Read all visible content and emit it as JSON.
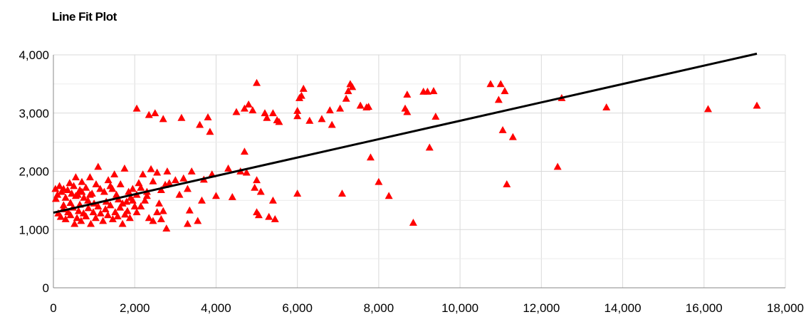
{
  "chart_data": {
    "type": "scatter",
    "title": "Line Fit Plot",
    "xlabel": "",
    "ylabel": "",
    "xlim": [
      0,
      18000
    ],
    "ylim": [
      0,
      4000
    ],
    "x_ticks": [
      0,
      2000,
      4000,
      6000,
      8000,
      10000,
      12000,
      14000,
      16000,
      18000
    ],
    "x_tick_labels": [
      "0",
      "2,000",
      "4,000",
      "6,000",
      "8,000",
      "10,000",
      "12,000",
      "14,000",
      "16,000",
      "18,000"
    ],
    "y_ticks": [
      0,
      1000,
      2000,
      3000,
      4000
    ],
    "y_tick_labels": [
      "0",
      "1,000",
      "2,000",
      "3,000",
      "4,000"
    ],
    "grid": true,
    "marker_color": "#ff0000",
    "line_color": "#000000",
    "fit_line": {
      "x": [
        0,
        17300
      ],
      "y": [
        1290,
        4020
      ]
    },
    "points": [
      [
        2050,
        3080
      ],
      [
        2350,
        2970
      ],
      [
        2500,
        3000
      ],
      [
        2700,
        2900
      ],
      [
        3150,
        2920
      ],
      [
        3600,
        2800
      ],
      [
        3800,
        2930
      ],
      [
        3850,
        2680
      ],
      [
        4500,
        3020
      ],
      [
        4700,
        3080
      ],
      [
        4800,
        3150
      ],
      [
        4900,
        3050
      ],
      [
        5000,
        3520
      ],
      [
        5200,
        3000
      ],
      [
        5250,
        2920
      ],
      [
        5400,
        3000
      ],
      [
        5500,
        2880
      ],
      [
        5550,
        2850
      ],
      [
        6000,
        2950
      ],
      [
        6000,
        3040
      ],
      [
        6100,
        3300
      ],
      [
        6150,
        3420
      ],
      [
        6050,
        3260
      ],
      [
        6300,
        2870
      ],
      [
        6600,
        2900
      ],
      [
        6800,
        3050
      ],
      [
        6850,
        2800
      ],
      [
        7050,
        3080
      ],
      [
        7200,
        3250
      ],
      [
        7300,
        3500
      ],
      [
        7250,
        3380
      ],
      [
        7350,
        3450
      ],
      [
        7550,
        3130
      ],
      [
        7700,
        3100
      ],
      [
        7750,
        3110
      ],
      [
        8650,
        3080
      ],
      [
        8700,
        3020
      ],
      [
        8700,
        3320
      ],
      [
        9100,
        3370
      ],
      [
        9200,
        3370
      ],
      [
        9350,
        3380
      ],
      [
        9400,
        2940
      ],
      [
        9250,
        2410
      ],
      [
        10750,
        3500
      ],
      [
        10950,
        3230
      ],
      [
        11000,
        3500
      ],
      [
        11100,
        3380
      ],
      [
        11050,
        2710
      ],
      [
        11300,
        2590
      ],
      [
        12500,
        3260
      ],
      [
        13600,
        3100
      ],
      [
        16100,
        3070
      ],
      [
        17300,
        3130
      ],
      [
        7800,
        2240
      ],
      [
        8000,
        1820
      ],
      [
        8250,
        1580
      ],
      [
        8850,
        1120
      ],
      [
        7100,
        1620
      ],
      [
        6000,
        1620
      ],
      [
        11150,
        1780
      ],
      [
        12400,
        2080
      ],
      [
        4700,
        2340
      ],
      [
        4600,
        2000
      ],
      [
        4750,
        1980
      ],
      [
        4400,
        1560
      ],
      [
        4300,
        2050
      ],
      [
        4000,
        1580
      ],
      [
        3900,
        1950
      ],
      [
        3700,
        1860
      ],
      [
        3650,
        1500
      ],
      [
        3400,
        2000
      ],
      [
        3300,
        1700
      ],
      [
        3200,
        1880
      ],
      [
        3100,
        1600
      ],
      [
        3000,
        1850
      ],
      [
        2850,
        1800
      ],
      [
        2800,
        2000
      ],
      [
        2750,
        1770
      ],
      [
        2650,
        1680
      ],
      [
        2550,
        1980
      ],
      [
        2450,
        1830
      ],
      [
        2400,
        2040
      ],
      [
        2300,
        1650
      ],
      [
        2200,
        1950
      ],
      [
        2150,
        1720
      ],
      [
        2100,
        1800
      ],
      [
        2050,
        1600
      ],
      [
        1950,
        1700
      ],
      [
        1850,
        1650
      ],
      [
        1750,
        2050
      ],
      [
        1650,
        1780
      ],
      [
        1550,
        1600
      ],
      [
        1500,
        1950
      ],
      [
        1450,
        1700
      ],
      [
        1350,
        1850
      ],
      [
        1250,
        1650
      ],
      [
        1100,
        2080
      ],
      [
        1050,
        1780
      ],
      [
        950,
        1620
      ],
      [
        900,
        1900
      ],
      [
        800,
        1720
      ],
      [
        750,
        1550
      ],
      [
        700,
        1820
      ],
      [
        650,
        1680
      ],
      [
        600,
        1600
      ],
      [
        550,
        1900
      ],
      [
        500,
        1750
      ],
      [
        450,
        1620
      ],
      [
        400,
        1800
      ],
      [
        350,
        1680
      ],
      [
        300,
        1550
      ],
      [
        250,
        1700
      ],
      [
        200,
        1650
      ],
      [
        150,
        1750
      ],
      [
        100,
        1600
      ],
      [
        50,
        1700
      ],
      [
        60,
        1530
      ],
      [
        120,
        1280
      ],
      [
        180,
        1220
      ],
      [
        240,
        1350
      ],
      [
        300,
        1180
      ],
      [
        360,
        1300
      ],
      [
        420,
        1250
      ],
      [
        480,
        1380
      ],
      [
        520,
        1100
      ],
      [
        580,
        1200
      ],
      [
        620,
        1320
      ],
      [
        680,
        1150
      ],
      [
        740,
        1280
      ],
      [
        800,
        1230
      ],
      [
        860,
        1370
      ],
      [
        920,
        1100
      ],
      [
        980,
        1300
      ],
      [
        1040,
        1200
      ],
      [
        1100,
        1400
      ],
      [
        1160,
        1280
      ],
      [
        1220,
        1150
      ],
      [
        1280,
        1350
      ],
      [
        1340,
        1250
      ],
      [
        1400,
        1420
      ],
      [
        1460,
        1180
      ],
      [
        1520,
        1300
      ],
      [
        1580,
        1230
      ],
      [
        1640,
        1380
      ],
      [
        1700,
        1100
      ],
      [
        1760,
        1260
      ],
      [
        1820,
        1320
      ],
      [
        1880,
        1200
      ],
      [
        1950,
        1500
      ],
      [
        2050,
        1300
      ],
      [
        2150,
        1400
      ],
      [
        2250,
        1500
      ],
      [
        2350,
        1200
      ],
      [
        2450,
        1150
      ],
      [
        2550,
        1300
      ],
      [
        2650,
        1180
      ],
      [
        2780,
        1020
      ],
      [
        3350,
        1330
      ],
      [
        3550,
        1150
      ],
      [
        3300,
        1100
      ],
      [
        5000,
        1300
      ],
      [
        5050,
        1250
      ],
      [
        5300,
        1220
      ],
      [
        5450,
        1180
      ],
      [
        5100,
        1650
      ],
      [
        5400,
        1500
      ],
      [
        5000,
        1850
      ],
      [
        4950,
        1720
      ],
      [
        2600,
        1450
      ],
      [
        2700,
        1320
      ],
      [
        1900,
        1550
      ],
      [
        1700,
        1450
      ],
      [
        1600,
        1520
      ],
      [
        1300,
        1480
      ],
      [
        1000,
        1450
      ],
      [
        850,
        1500
      ],
      [
        650,
        1430
      ],
      [
        420,
        1460
      ],
      [
        250,
        1420
      ],
      [
        900,
        1600
      ],
      [
        1150,
        1700
      ],
      [
        1400,
        1750
      ],
      [
        700,
        1650
      ],
      [
        550,
        1580
      ],
      [
        1800,
        1480
      ],
      [
        2000,
        1400
      ],
      [
        2300,
        1580
      ]
    ]
  }
}
